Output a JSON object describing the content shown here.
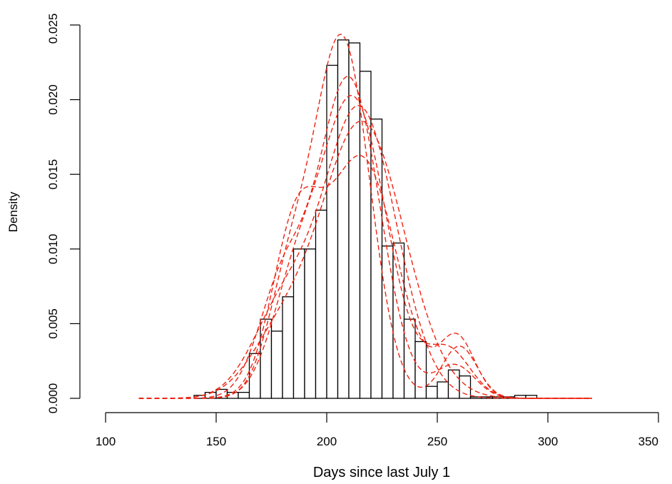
{
  "chart_data": {
    "type": "bar",
    "title": "",
    "xlabel": "Days since last July 1",
    "ylabel": "Density",
    "xlim": [
      100,
      350
    ],
    "ylim": [
      0,
      0.025
    ],
    "x_ticks": [
      "100",
      "150",
      "200",
      "250",
      "300",
      "350"
    ],
    "y_ticks": [
      "0.000",
      "0.005",
      "0.010",
      "0.015",
      "0.020",
      "0.025"
    ],
    "grid": false,
    "legend": "none",
    "histogram": {
      "bin_width": 5,
      "bins": [
        {
          "start": 140,
          "end": 145,
          "density": 0.0002
        },
        {
          "start": 145,
          "end": 150,
          "density": 0.0004
        },
        {
          "start": 150,
          "end": 155,
          "density": 0.0006
        },
        {
          "start": 155,
          "end": 160,
          "density": 0.0004
        },
        {
          "start": 160,
          "end": 165,
          "density": 0.0004
        },
        {
          "start": 165,
          "end": 170,
          "density": 0.003
        },
        {
          "start": 170,
          "end": 175,
          "density": 0.0053
        },
        {
          "start": 175,
          "end": 180,
          "density": 0.0045
        },
        {
          "start": 180,
          "end": 185,
          "density": 0.0068
        },
        {
          "start": 185,
          "end": 190,
          "density": 0.01
        },
        {
          "start": 190,
          "end": 195,
          "density": 0.01
        },
        {
          "start": 195,
          "end": 200,
          "density": 0.0126
        },
        {
          "start": 200,
          "end": 205,
          "density": 0.0223
        },
        {
          "start": 205,
          "end": 210,
          "density": 0.024
        },
        {
          "start": 210,
          "end": 215,
          "density": 0.0238
        },
        {
          "start": 215,
          "end": 220,
          "density": 0.0219
        },
        {
          "start": 220,
          "end": 225,
          "density": 0.0187
        },
        {
          "start": 225,
          "end": 230,
          "density": 0.0102
        },
        {
          "start": 230,
          "end": 235,
          "density": 0.0104
        },
        {
          "start": 235,
          "end": 240,
          "density": 0.0053
        },
        {
          "start": 240,
          "end": 245,
          "density": 0.0038
        },
        {
          "start": 245,
          "end": 250,
          "density": 0.0008
        },
        {
          "start": 250,
          "end": 255,
          "density": 0.0011
        },
        {
          "start": 255,
          "end": 260,
          "density": 0.0019
        },
        {
          "start": 260,
          "end": 265,
          "density": 0.0015
        },
        {
          "start": 265,
          "end": 270,
          "density": 0.0001
        },
        {
          "start": 270,
          "end": 275,
          "density": 0.0001
        },
        {
          "start": 275,
          "end": 280,
          "density": 0.0001
        },
        {
          "start": 280,
          "end": 285,
          "density": 0.0001
        },
        {
          "start": 285,
          "end": 290,
          "density": 0.0002
        },
        {
          "start": 290,
          "end": 295,
          "density": 0.0002
        }
      ]
    },
    "density_curves": {
      "color": "#ee2211",
      "line_style": "dashed",
      "x_range": [
        115,
        320
      ],
      "curves": [
        {
          "components": [
            {
              "w": 0.75,
              "m": 207,
              "s": 12.5
            },
            {
              "w": 0.18,
              "m": 183,
              "s": 10
            },
            {
              "w": 0.07,
              "m": 260,
              "s": 8
            }
          ]
        },
        {
          "components": [
            {
              "w": 0.75,
              "m": 210,
              "s": 14
            },
            {
              "w": 0.2,
              "m": 180,
              "s": 11
            },
            {
              "w": 0.05,
              "m": 258,
              "s": 9
            }
          ]
        },
        {
          "components": [
            {
              "w": 0.75,
              "m": 212,
              "s": 15
            },
            {
              "w": 0.17,
              "m": 185,
              "s": 11
            },
            {
              "w": 0.08,
              "m": 255,
              "s": 10
            }
          ]
        },
        {
          "components": [
            {
              "w": 0.8,
              "m": 215,
              "s": 16.5
            },
            {
              "w": 0.2,
              "m": 180,
              "s": 14
            }
          ]
        },
        {
          "components": [
            {
              "w": 0.88,
              "m": 216,
              "s": 19
            },
            {
              "w": 0.12,
              "m": 178,
              "s": 14
            }
          ]
        },
        {
          "components": [
            {
              "w": 0.62,
              "m": 216,
              "s": 15.5
            },
            {
              "w": 0.3,
              "m": 186,
              "s": 11
            },
            {
              "w": 0.08,
              "m": 259,
              "s": 8
            }
          ]
        }
      ]
    }
  }
}
